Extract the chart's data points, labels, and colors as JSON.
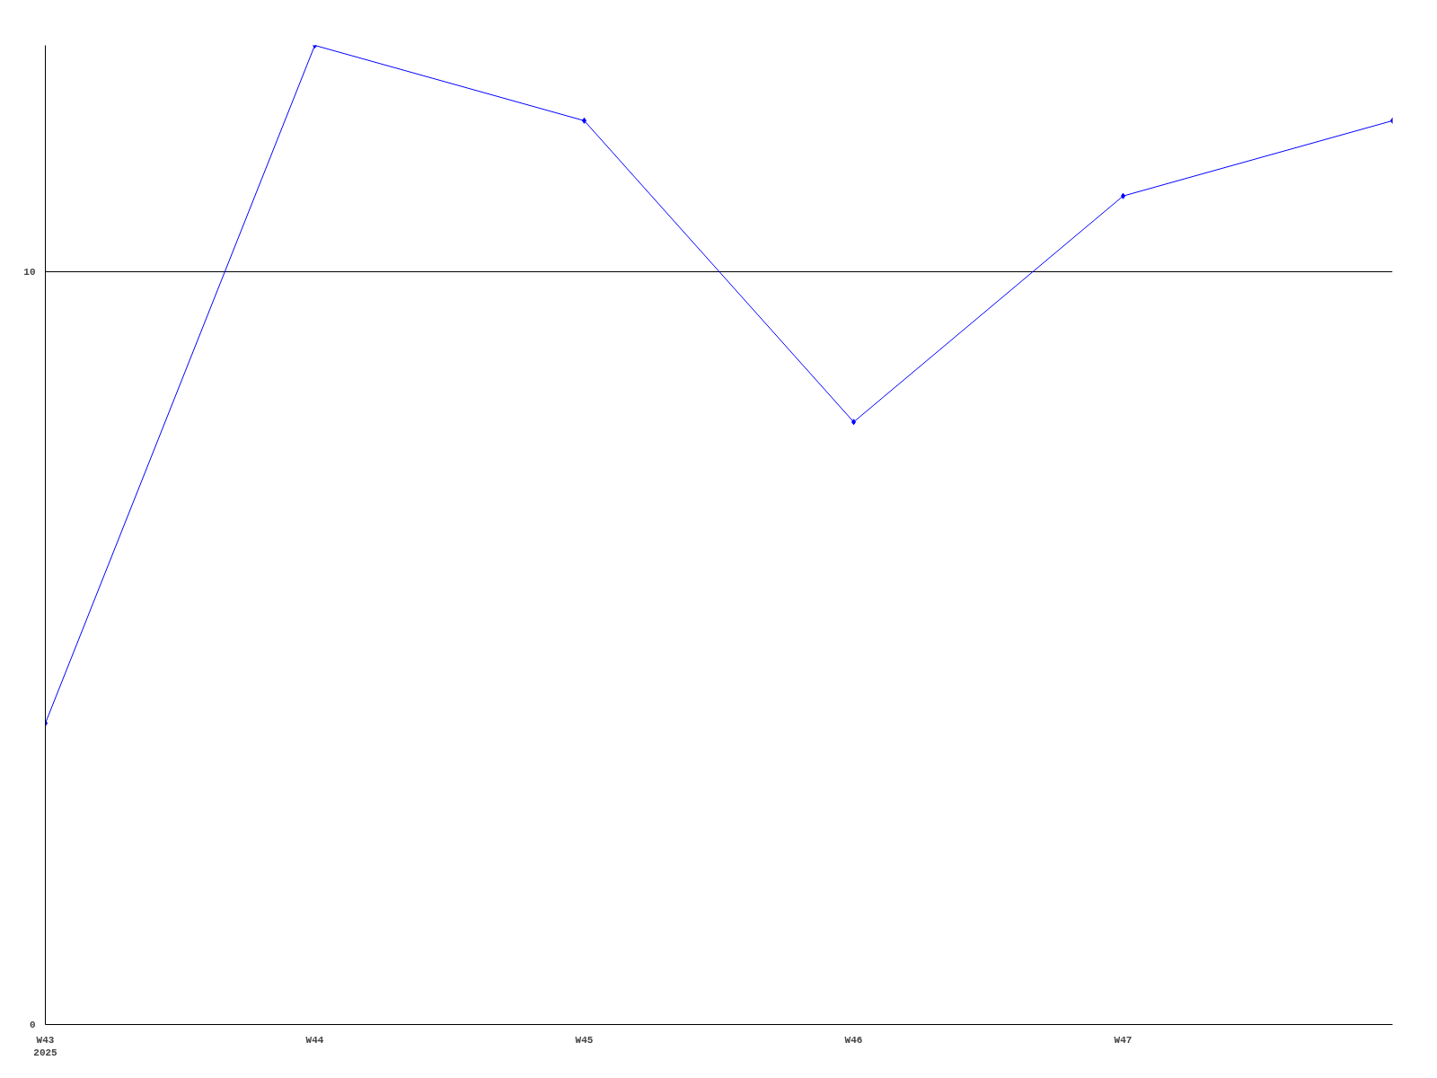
{
  "chart_data": {
    "type": "line",
    "categories": [
      "W43\n2025",
      "W44",
      "W45",
      "W46",
      "W47",
      null
    ],
    "series": [
      {
        "color": "#0000ff",
        "values": [
          4,
          13,
          12,
          8,
          11,
          12
        ]
      }
    ],
    "ylim": [
      0,
      13
    ],
    "yticks": [
      0,
      10
    ],
    "grid": "y",
    "marker": "diamond"
  }
}
